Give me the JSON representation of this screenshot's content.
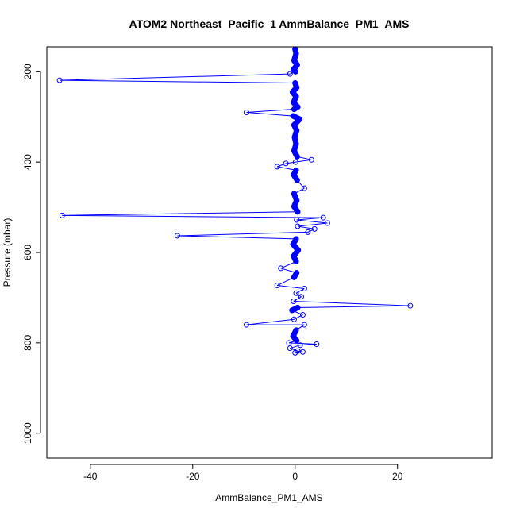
{
  "chart_data": {
    "type": "line",
    "title": "ATOM2 Northeast_Pacific_1 AmmBalance_PM1_AMS",
    "xlabel": "AmmBalance_PM1_AMS",
    "ylabel": "Pressure (mbar)",
    "xlim": [
      -48.5,
      38.5
    ],
    "ylim": [
      1055,
      145
    ],
    "y_inverted": true,
    "xticks": [
      -40,
      -20,
      0,
      20
    ],
    "yticks": [
      200,
      400,
      600,
      800,
      1000
    ],
    "grid": false,
    "line_color": "#0000ff",
    "marker": "open-circle",
    "series": [
      {
        "points": [
          [
            0.0,
            150
          ],
          [
            0.2,
            160
          ],
          [
            -0.2,
            175
          ],
          [
            0.4,
            185
          ],
          [
            -0.3,
            195
          ],
          [
            0.1,
            200
          ],
          [
            -1.0,
            205
          ],
          [
            -46.0,
            219
          ],
          [
            0.0,
            225
          ],
          [
            0.3,
            235
          ],
          [
            -0.5,
            245
          ],
          [
            0.2,
            255
          ],
          [
            -0.3,
            268
          ],
          [
            0.5,
            278
          ],
          [
            -0.2,
            283
          ],
          [
            -9.5,
            290
          ],
          [
            -0.4,
            298
          ],
          [
            0.9,
            305
          ],
          [
            -0.2,
            318
          ],
          [
            0.3,
            330
          ],
          [
            -0.1,
            345
          ],
          [
            0.2,
            360
          ],
          [
            -0.2,
            375
          ],
          [
            0.4,
            388
          ],
          [
            3.2,
            395
          ],
          [
            0.1,
            400
          ],
          [
            -1.8,
            403
          ],
          [
            -3.5,
            410
          ],
          [
            0.2,
            418
          ],
          [
            -0.3,
            428
          ],
          [
            0.4,
            440
          ],
          [
            1.8,
            458
          ],
          [
            -0.2,
            470
          ],
          [
            0.3,
            485
          ],
          [
            -0.2,
            498
          ],
          [
            0.5,
            510
          ],
          [
            -45.5,
            518
          ],
          [
            5.5,
            523
          ],
          [
            0.3,
            528
          ],
          [
            6.3,
            535
          ],
          [
            0.5,
            542
          ],
          [
            3.8,
            548
          ],
          [
            2.5,
            555
          ],
          [
            -23.0,
            563
          ],
          [
            0.2,
            570
          ],
          [
            -0.4,
            582
          ],
          [
            0.6,
            595
          ],
          [
            -0.3,
            608
          ],
          [
            0.2,
            620
          ],
          [
            -2.8,
            635
          ],
          [
            0.3,
            645
          ],
          [
            -0.2,
            655
          ],
          [
            -3.5,
            673
          ],
          [
            1.8,
            680
          ],
          [
            0.2,
            690
          ],
          [
            1.2,
            698
          ],
          [
            -0.3,
            708
          ],
          [
            22.5,
            718
          ],
          [
            0.5,
            722
          ],
          [
            -0.6,
            728
          ],
          [
            1.5,
            738
          ],
          [
            -0.2,
            748
          ],
          [
            -9.5,
            760
          ],
          [
            1.8,
            760
          ],
          [
            0.2,
            772
          ],
          [
            -0.4,
            785
          ],
          [
            0.3,
            795
          ],
          [
            -1.2,
            800
          ],
          [
            4.2,
            803
          ],
          [
            1.0,
            805
          ],
          [
            -1.0,
            812
          ],
          [
            0.5,
            818
          ],
          [
            1.5,
            820
          ],
          [
            0.0,
            822
          ]
        ]
      }
    ]
  }
}
